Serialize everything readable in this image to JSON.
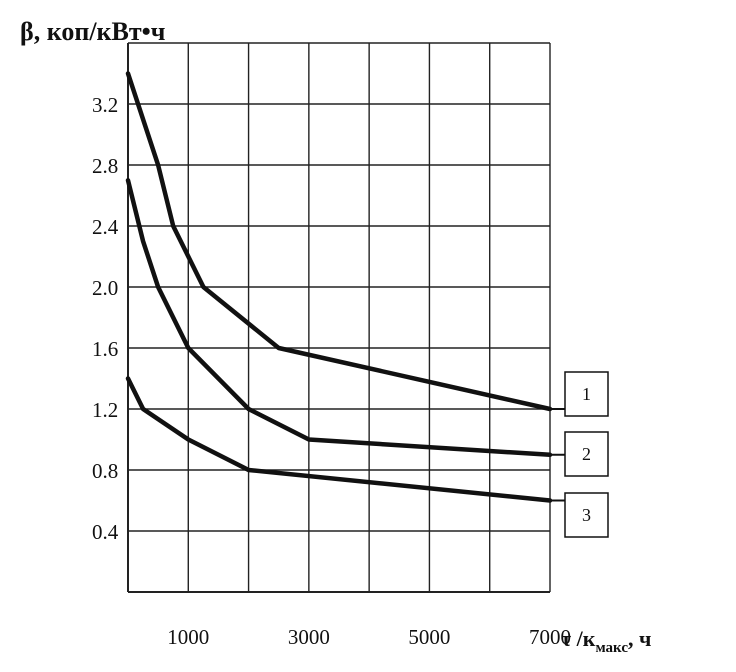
{
  "chart_data": {
    "type": "line",
    "ylabel": "β, коп/кВт•ч",
    "xlabel_main": "τ /к",
    "xlabel_sub": "макс",
    "xlabel_tail": ", ч",
    "x_ticks": [
      "1000",
      "3000",
      "5000",
      "7000"
    ],
    "y_ticks": [
      "0.4",
      "0.8",
      "1.2",
      "1.6",
      "2.0",
      "2.4",
      "2.8",
      "3.2"
    ],
    "xlim": [
      0,
      7000
    ],
    "ylim": [
      0,
      3.6
    ],
    "grid": true,
    "legend": [
      "1",
      "2",
      "3"
    ],
    "series": [
      {
        "name": "1",
        "points": [
          [
            0,
            3.4
          ],
          [
            500,
            2.8
          ],
          [
            750,
            2.4
          ],
          [
            1250,
            2.0
          ],
          [
            2500,
            1.6
          ],
          [
            7000,
            1.2
          ]
        ]
      },
      {
        "name": "2",
        "points": [
          [
            0,
            2.7
          ],
          [
            250,
            2.3
          ],
          [
            500,
            2.0
          ],
          [
            1000,
            1.6
          ],
          [
            2000,
            1.2
          ],
          [
            3000,
            1.0
          ],
          [
            7000,
            0.9
          ]
        ]
      },
      {
        "name": "3",
        "points": [
          [
            0,
            1.4
          ],
          [
            250,
            1.2
          ],
          [
            1000,
            1.0
          ],
          [
            2000,
            0.8
          ],
          [
            7000,
            0.6
          ]
        ]
      }
    ]
  }
}
